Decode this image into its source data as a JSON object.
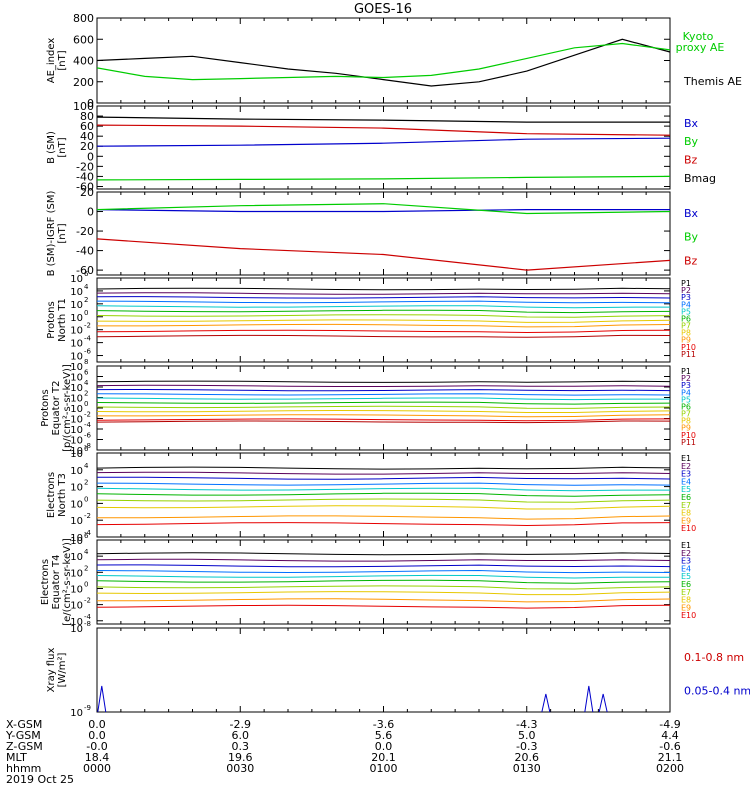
{
  "title": "GOES-16",
  "colors": {
    "black": "#000000",
    "green": "#00cc00",
    "blue": "#0000cc",
    "red": "#cc0000",
    "P": [
      "#000000",
      "#5a005a",
      "#0000c8",
      "#0070ff",
      "#00c8c8",
      "#00b400",
      "#96d200",
      "#e6c800",
      "#ff9600",
      "#e60000",
      "#b40000"
    ],
    "E": [
      "#000000",
      "#5a005a",
      "#0000c8",
      "#0070ff",
      "#00c8c8",
      "#00b400",
      "#96d200",
      "#e6c800",
      "#ff9600",
      "#e60000",
      "#b40000"
    ]
  },
  "chart_data": [
    {
      "type": "line",
      "ylabel": "AE_index [nT]",
      "yticks": [
        0,
        200,
        400,
        600,
        800
      ],
      "ylim": [
        0,
        800
      ],
      "x": [
        0,
        10,
        20,
        30,
        40,
        50,
        60,
        70,
        80,
        90,
        100,
        110,
        120
      ],
      "legend": [
        {
          "text": "Kyoto proxy AE",
          "color": "green"
        },
        {
          "text": "Themis AE",
          "color": "black"
        }
      ],
      "series": [
        {
          "name": "Themis AE",
          "color": "black",
          "values": [
            400,
            420,
            440,
            380,
            320,
            280,
            220,
            160,
            200,
            300,
            450,
            600,
            480
          ]
        },
        {
          "name": "Kyoto proxy AE",
          "color": "green",
          "values": [
            330,
            250,
            220,
            230,
            240,
            250,
            240,
            260,
            320,
            420,
            520,
            560,
            500
          ]
        }
      ]
    },
    {
      "type": "line",
      "ylabel": "B (SM) [nT]",
      "yticks": [
        -60,
        -40,
        -20,
        0,
        20,
        40,
        60,
        80,
        100
      ],
      "ylim": [
        -65,
        100
      ],
      "x": [
        0,
        30,
        60,
        90,
        120
      ],
      "legend": [
        {
          "text": "Bx",
          "color": "blue"
        },
        {
          "text": "By",
          "color": "green"
        },
        {
          "text": "Bz",
          "color": "red"
        },
        {
          "text": "Bmag",
          "color": "black"
        }
      ],
      "series": [
        {
          "name": "Bmag",
          "color": "black",
          "values": [
            78,
            74,
            72,
            68,
            68
          ]
        },
        {
          "name": "Bz",
          "color": "red",
          "values": [
            62,
            60,
            56,
            45,
            42
          ]
        },
        {
          "name": "Bx",
          "color": "blue",
          "values": [
            20,
            22,
            26,
            34,
            36
          ]
        },
        {
          "name": "By",
          "color": "green",
          "values": [
            -47,
            -46,
            -45,
            -42,
            -40
          ]
        }
      ]
    },
    {
      "type": "line",
      "ylabel": "B (SM)-IGRF (SM) [nT]",
      "yticks": [
        -60,
        -40,
        -20,
        0,
        20
      ],
      "ylim": [
        -65,
        20
      ],
      "x": [
        0,
        30,
        60,
        90,
        120
      ],
      "legend": [
        {
          "text": "Bx",
          "color": "blue"
        },
        {
          "text": "By",
          "color": "green"
        },
        {
          "text": "Bz",
          "color": "red"
        }
      ],
      "series": [
        {
          "name": "Bx",
          "color": "blue",
          "values": [
            2,
            0,
            0,
            2,
            2
          ]
        },
        {
          "name": "By",
          "color": "green",
          "values": [
            2,
            6,
            8,
            -2,
            0
          ]
        },
        {
          "name": "Bz",
          "color": "red",
          "values": [
            -28,
            -38,
            -44,
            -60,
            -50
          ]
        }
      ]
    },
    {
      "type": "line",
      "ylabel": "Protons North T1",
      "log": true,
      "yticks_exp": [
        6,
        4,
        2,
        0,
        -2,
        -4,
        -6
      ],
      "ylim_exp": [
        -7,
        6
      ],
      "legend": [
        "P1",
        "P2",
        "P3",
        "P4",
        "P5",
        "P6",
        "P7",
        "P8",
        "P9",
        "P10",
        "P11"
      ],
      "levels_exp": [
        4.3,
        3.6,
        3.0,
        2.3,
        1.6,
        0.9,
        0.2,
        -0.6,
        -1.3,
        -2.2,
        -3.0
      ]
    },
    {
      "type": "line",
      "ylabel": "Protons Equator T2 [p/(cm²-s-sr-keV)]",
      "log": true,
      "yticks_exp": [
        8,
        6,
        4,
        2,
        0,
        -2,
        -4,
        -6,
        -8
      ],
      "ylim_exp": [
        -8,
        8
      ],
      "legend": [
        "P1",
        "P2",
        "P3",
        "P4",
        "P5",
        "P6",
        "P7",
        "P8",
        "P9",
        "P10",
        "P11"
      ],
      "levels_exp": [
        5.0,
        4.2,
        3.4,
        2.6,
        1.8,
        1.0,
        0.2,
        -0.6,
        -1.4,
        -2.2,
        -2.6
      ]
    },
    {
      "type": "line",
      "ylabel": "Electrons North T3",
      "log": true,
      "yticks_exp": [
        6,
        4,
        2,
        0,
        -2,
        -4
      ],
      "ylim_exp": [
        -4,
        6
      ],
      "legend": [
        "E1",
        "E2",
        "E3",
        "E4",
        "E5",
        "E6",
        "E7",
        "E8",
        "E9",
        "E10"
      ],
      "levels_exp": [
        4.2,
        3.6,
        3.0,
        2.3,
        1.7,
        1.1,
        0.4,
        -0.4,
        -1.6,
        -2.4
      ]
    },
    {
      "type": "line",
      "ylabel": "Electrons Equator T4 [e/(cm²-s-sr-keV)]",
      "log": true,
      "yticks_exp": [
        6,
        4,
        2,
        0,
        -2,
        -4
      ],
      "ylim_exp": [
        -4.4,
        6
      ],
      "legend": [
        "E1",
        "E2",
        "E3",
        "E4",
        "E5",
        "E6",
        "E7",
        "E8",
        "E9",
        "E10"
      ],
      "levels_exp": [
        4.3,
        3.5,
        2.8,
        2.1,
        1.5,
        0.9,
        0.2,
        -0.5,
        -1.4,
        -2.2
      ]
    },
    {
      "type": "line",
      "ylabel": "Xray flux [W/m²]",
      "log": true,
      "yticks_exp": [
        -8,
        -9
      ],
      "ylim_exp": [
        -9,
        -8
      ],
      "legend": [
        {
          "text": "0.1-0.8 nm",
          "color": "red"
        },
        {
          "text": "0.05-0.4 nm",
          "color": "blue"
        }
      ],
      "spikes_minutes": [
        1,
        94,
        103,
        106
      ]
    }
  ],
  "x_axis": {
    "rows": [
      {
        "label": "X-GSM",
        "values": [
          "0.0",
          "-2.9",
          "-3.6",
          "-4.3",
          "-4.9"
        ]
      },
      {
        "label": "Y-GSM",
        "values": [
          "0.0",
          "6.0",
          "5.6",
          "5.0",
          "4.4"
        ]
      },
      {
        "label": "Z-GSM",
        "values": [
          "-0.0",
          "0.3",
          "0.0",
          "-0.3",
          "-0.6"
        ]
      },
      {
        "label": "MLT",
        "values": [
          "18.4",
          "19.6",
          "20.1",
          "20.6",
          "21.1"
        ]
      },
      {
        "label": "hhmm",
        "values": [
          "0000",
          "0030",
          "0100",
          "0130",
          "0200"
        ]
      }
    ],
    "date": "2019 Oct 25",
    "x_minutes": [
      0,
      30,
      60,
      90,
      120
    ]
  }
}
